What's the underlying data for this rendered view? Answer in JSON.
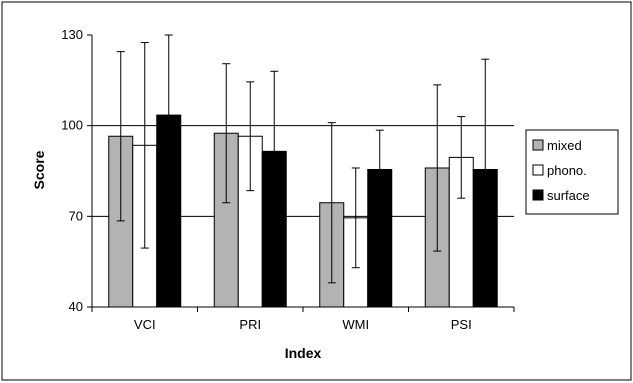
{
  "chart_data": {
    "type": "bar",
    "categories": [
      "VCI",
      "PRI",
      "WMI",
      "PSI"
    ],
    "series": [
      {
        "name": "mixed",
        "color": "#b3b3b3",
        "values": [
          96.5,
          97.5,
          74.5,
          86
        ],
        "errors": [
          28,
          23,
          26.5,
          27.5
        ]
      },
      {
        "name": "phono.",
        "color": "#ffffff",
        "values": [
          93.5,
          96.5,
          69.5,
          89.5
        ],
        "errors": [
          34,
          18,
          16.5,
          13.5
        ]
      },
      {
        "name": "surface",
        "color": "#000000",
        "values": [
          103.5,
          91.5,
          85.5,
          85.5
        ],
        "errors": [
          26.5,
          26.5,
          13,
          36.5
        ]
      }
    ],
    "xlabel": "Index",
    "ylabel": "Score",
    "ylim": [
      40,
      130
    ],
    "yticks": [
      40,
      70,
      100,
      130
    ],
    "gridlines": [
      70,
      100
    ],
    "legend_position": "right"
  }
}
